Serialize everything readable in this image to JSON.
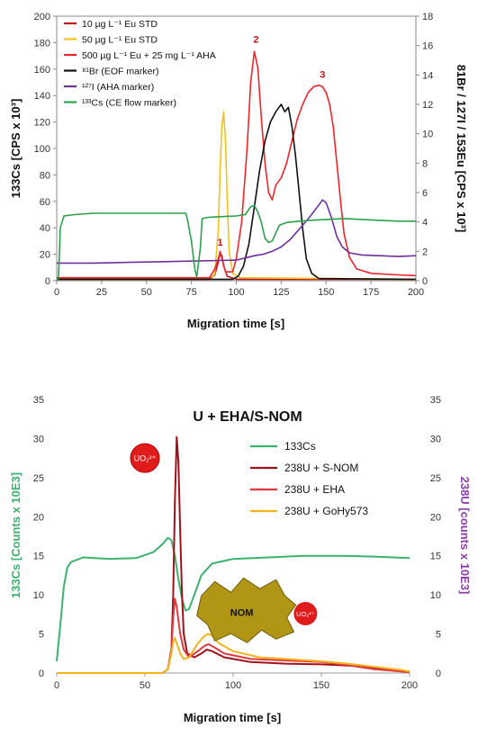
{
  "chart_data": [
    {
      "type": "line",
      "title": "",
      "xlabel": "Migration time [s]",
      "ylabel_left": "133Cs [CPS x 10³]",
      "ylabel_right": "81Br / 127I / 153Eu [CPS x 10³]",
      "xlim": [
        0,
        200
      ],
      "ylim_left": [
        0,
        200
      ],
      "ylim_right": [
        0,
        18
      ],
      "x_ticks": [
        "0",
        "25",
        "50",
        "75",
        "100",
        "125",
        "150",
        "175",
        "200"
      ],
      "y_ticks_left": [
        "0",
        "20",
        "40",
        "60",
        "80",
        "100",
        "120",
        "140",
        "160",
        "180",
        "200"
      ],
      "y_ticks_right": [
        "0",
        "2",
        "4",
        "6",
        "8",
        "10",
        "12",
        "14",
        "16",
        "18"
      ],
      "legend_position": "top-left",
      "series": [
        {
          "name": "10 µg L⁻¹ Eu STD",
          "color": "#c0141c",
          "axis": "right",
          "points": [
            [
              0,
              0.1
            ],
            [
              85,
              0.1
            ],
            [
              88,
              0.4
            ],
            [
              90,
              1.3
            ],
            [
              91,
              1.9
            ],
            [
              92,
              1.7
            ],
            [
              93,
              1.0
            ],
            [
              95,
              0.3
            ],
            [
              100,
              0.1
            ],
            [
              200,
              0.1
            ]
          ]
        },
        {
          "name": "50 µg L⁻¹ Eu STD",
          "color": "#f2c21b",
          "axis": "right",
          "points": [
            [
              0,
              0.1
            ],
            [
              86,
              0.1
            ],
            [
              88,
              0.5
            ],
            [
              90,
              3.5
            ],
            [
              91,
              7.5
            ],
            [
              92,
              10.5
            ],
            [
              93,
              11.5
            ],
            [
              94,
              9.5
            ],
            [
              95,
              5.5
            ],
            [
              96,
              2.0
            ],
            [
              98,
              0.5
            ],
            [
              102,
              0.2
            ],
            [
              200,
              0.1
            ]
          ]
        },
        {
          "name": "500 µg L⁻¹ Eu + 25 mg L⁻¹ AHA",
          "color": "#f0252b",
          "axis": "right",
          "points": [
            [
              0,
              0.2
            ],
            [
              85,
              0.2
            ],
            [
              88,
              0.8
            ],
            [
              90,
              1.5
            ],
            [
              91,
              2.0
            ],
            [
              92,
              1.5
            ],
            [
              94,
              0.6
            ],
            [
              98,
              0.6
            ],
            [
              100,
              1.5
            ],
            [
              103,
              4.0
            ],
            [
              106,
              9.0
            ],
            [
              108,
              13.5
            ],
            [
              110,
              15.6
            ],
            [
              112,
              14.5
            ],
            [
              114,
              11.0
            ],
            [
              116,
              8.0
            ],
            [
              118,
              6.0
            ],
            [
              120,
              5.5
            ],
            [
              122,
              6.5
            ],
            [
              125,
              7.0
            ],
            [
              128,
              8.0
            ],
            [
              131,
              9.5
            ],
            [
              134,
              11.0
            ],
            [
              137,
              12.0
            ],
            [
              140,
              12.8
            ],
            [
              143,
              13.2
            ],
            [
              146,
              13.3
            ],
            [
              148,
              13.2
            ],
            [
              150,
              12.8
            ],
            [
              152,
              12.0
            ],
            [
              154,
              10.5
            ],
            [
              156,
              8.0
            ],
            [
              158,
              5.5
            ],
            [
              160,
              3.2
            ],
            [
              163,
              1.6
            ],
            [
              167,
              0.8
            ],
            [
              175,
              0.5
            ],
            [
              190,
              0.4
            ],
            [
              200,
              0.35
            ]
          ]
        },
        {
          "name": "⁸¹Br (EOF marker)",
          "color": "#111111",
          "axis": "right",
          "points": [
            [
              0,
              0.1
            ],
            [
              98,
              0.1
            ],
            [
              101,
              0.3
            ],
            [
              104,
              1.0
            ],
            [
              107,
              2.5
            ],
            [
              110,
              5.0
            ],
            [
              113,
              7.5
            ],
            [
              116,
              9.5
            ],
            [
              119,
              10.8
            ],
            [
              122,
              11.5
            ],
            [
              125,
              12.0
            ],
            [
              127,
              11.5
            ],
            [
              129,
              11.8
            ],
            [
              131,
              10.5
            ],
            [
              133,
              8.5
            ],
            [
              135,
              6.0
            ],
            [
              137,
              3.5
            ],
            [
              139,
              1.5
            ],
            [
              142,
              0.5
            ],
            [
              146,
              0.15
            ],
            [
              200,
              0.1
            ]
          ]
        },
        {
          "name": "¹²⁷I (AHA marker)",
          "color": "#7030a0",
          "axis": "right",
          "points": [
            [
              0,
              1.2
            ],
            [
              20,
              1.2
            ],
            [
              40,
              1.25
            ],
            [
              60,
              1.3
            ],
            [
              80,
              1.35
            ],
            [
              100,
              1.4
            ],
            [
              105,
              1.55
            ],
            [
              110,
              1.7
            ],
            [
              115,
              1.8
            ],
            [
              120,
              2.0
            ],
            [
              125,
              2.3
            ],
            [
              130,
              2.8
            ],
            [
              135,
              3.5
            ],
            [
              140,
              4.2
            ],
            [
              145,
              5.0
            ],
            [
              148,
              5.5
            ],
            [
              150,
              5.3
            ],
            [
              153,
              4.3
            ],
            [
              156,
              3.0
            ],
            [
              159,
              2.3
            ],
            [
              163,
              1.9
            ],
            [
              170,
              1.75
            ],
            [
              180,
              1.7
            ],
            [
              190,
              1.65
            ],
            [
              200,
              1.7
            ]
          ]
        },
        {
          "name": "¹³³Cs (CE flow marker)",
          "color": "#2aa14a",
          "axis": "left",
          "points": [
            [
              0,
              0
            ],
            [
              1,
              2
            ],
            [
              2,
              40
            ],
            [
              4,
              49
            ],
            [
              10,
              50
            ],
            [
              20,
              51
            ],
            [
              40,
              51
            ],
            [
              60,
              51
            ],
            [
              72,
              51
            ],
            [
              73,
              45
            ],
            [
              75,
              30
            ],
            [
              77,
              8
            ],
            [
              78,
              3
            ],
            [
              80,
              25
            ],
            [
              81,
              47
            ],
            [
              85,
              48
            ],
            [
              100,
              49
            ],
            [
              105,
              50
            ],
            [
              108,
              56
            ],
            [
              110,
              57
            ],
            [
              112,
              52
            ],
            [
              114,
              44
            ],
            [
              116,
              32
            ],
            [
              118,
              29
            ],
            [
              120,
              30
            ],
            [
              122,
              36
            ],
            [
              124,
              42
            ],
            [
              128,
              44
            ],
            [
              135,
              45
            ],
            [
              145,
              46
            ],
            [
              160,
              47
            ],
            [
              175,
              46
            ],
            [
              190,
              45
            ],
            [
              200,
              45
            ]
          ]
        }
      ],
      "annotations": [
        {
          "text": "1",
          "x": 91,
          "y_right": 2.4,
          "color": "#c0141c"
        },
        {
          "text": "2",
          "x": 111,
          "y_right": 16.2,
          "color": "#c0141c"
        },
        {
          "text": "3",
          "x": 148,
          "y_right": 13.8,
          "color": "#c0141c"
        }
      ]
    },
    {
      "type": "line",
      "title": "U + EHA/S-NOM",
      "xlabel": "Migration time [s]",
      "ylabel_left": "133Cs [Counts x 10E3]",
      "ylabel_right": "238U [counts x 10E3]",
      "xlim": [
        0,
        200
      ],
      "ylim_left": [
        0,
        35
      ],
      "ylim_right": [
        0,
        35
      ],
      "x_ticks": [
        "0",
        "50",
        "100",
        "150",
        "200"
      ],
      "y_ticks_left": [
        "0",
        "5",
        "10",
        "15",
        "20",
        "25",
        "30",
        "35"
      ],
      "y_ticks_right": [
        "0",
        "5",
        "10",
        "15",
        "20",
        "25",
        "30",
        "35"
      ],
      "legend_position": "right",
      "series": [
        {
          "name": "133Cs",
          "color": "#3cb36b",
          "points": [
            [
              0,
              1.5
            ],
            [
              2,
              6
            ],
            [
              4,
              11
            ],
            [
              6,
              13.5
            ],
            [
              8,
              14.2
            ],
            [
              15,
              14.8
            ],
            [
              30,
              14.6
            ],
            [
              45,
              14.7
            ],
            [
              55,
              15.5
            ],
            [
              60,
              16.5
            ],
            [
              63,
              17.3
            ],
            [
              65,
              17
            ],
            [
              67,
              15
            ],
            [
              69,
              12
            ],
            [
              71,
              9.5
            ],
            [
              73,
              8
            ],
            [
              75,
              8.2
            ],
            [
              78,
              10
            ],
            [
              82,
              12.5
            ],
            [
              88,
              14
            ],
            [
              100,
              14.6
            ],
            [
              120,
              14.8
            ],
            [
              140,
              15
            ],
            [
              160,
              15
            ],
            [
              180,
              14.9
            ],
            [
              200,
              14.7
            ]
          ]
        },
        {
          "name": "238U + S-NOM",
          "color": "#a0121a",
          "points": [
            [
              0,
              0
            ],
            [
              60,
              0
            ],
            [
              63,
              0.5
            ],
            [
              65,
              3
            ],
            [
              66,
              10
            ],
            [
              67,
              22
            ],
            [
              68,
              30.2
            ],
            [
              69,
              27
            ],
            [
              70,
              18
            ],
            [
              71,
              10
            ],
            [
              72,
              5
            ],
            [
              74,
              2.5
            ],
            [
              78,
              2
            ],
            [
              82,
              2.5
            ],
            [
              85,
              3
            ],
            [
              88,
              2.8
            ],
            [
              95,
              2
            ],
            [
              110,
              1.4
            ],
            [
              130,
              1.2
            ],
            [
              150,
              1.1
            ],
            [
              170,
              0.9
            ],
            [
              185,
              0.5
            ],
            [
              200,
              0.2
            ]
          ]
        },
        {
          "name": "238U + EHA",
          "color": "#e03a3e",
          "points": [
            [
              0,
              0
            ],
            [
              60,
              0
            ],
            [
              63,
              0.5
            ],
            [
              65,
              3
            ],
            [
              66,
              7
            ],
            [
              67,
              9.5
            ],
            [
              68,
              8.5
            ],
            [
              70,
              5
            ],
            [
              72,
              3
            ],
            [
              75,
              2
            ],
            [
              80,
              2.8
            ],
            [
              84,
              3.5
            ],
            [
              86,
              3.7
            ],
            [
              90,
              3.2
            ],
            [
              95,
              2.5
            ],
            [
              110,
              1.8
            ],
            [
              130,
              1.6
            ],
            [
              150,
              1.4
            ],
            [
              165,
              1
            ],
            [
              180,
              0.5
            ],
            [
              195,
              0.2
            ],
            [
              200,
              0.1
            ]
          ]
        },
        {
          "name": "238U + GoHy573",
          "color": "#f7b21b",
          "points": [
            [
              0,
              0
            ],
            [
              60,
              0
            ],
            [
              63,
              0.5
            ],
            [
              65,
              2.5
            ],
            [
              66,
              4
            ],
            [
              67,
              4.5
            ],
            [
              68,
              3.8
            ],
            [
              70,
              2.5
            ],
            [
              72,
              1.8
            ],
            [
              75,
              2
            ],
            [
              80,
              3.8
            ],
            [
              84,
              4.8
            ],
            [
              86,
              5
            ],
            [
              88,
              4.8
            ],
            [
              92,
              3.8
            ],
            [
              100,
              2.8
            ],
            [
              115,
              2
            ],
            [
              130,
              1.8
            ],
            [
              150,
              1.5
            ],
            [
              165,
              1.2
            ],
            [
              180,
              0.8
            ],
            [
              195,
              0.4
            ],
            [
              200,
              0.2
            ]
          ]
        }
      ],
      "annotations": [
        {
          "text": "UO₂²⁺",
          "kind": "circle-badge",
          "color": "#e01b1b",
          "x": 50,
          "y": 27.5
        },
        {
          "text": "NOM",
          "kind": "blob",
          "color": "#b19515",
          "x": 110,
          "y": 7.8
        },
        {
          "text": "UO₂²⁺",
          "kind": "circle-badge-small",
          "color": "#e01b1b",
          "x": 141,
          "y": 7.6
        }
      ]
    }
  ]
}
